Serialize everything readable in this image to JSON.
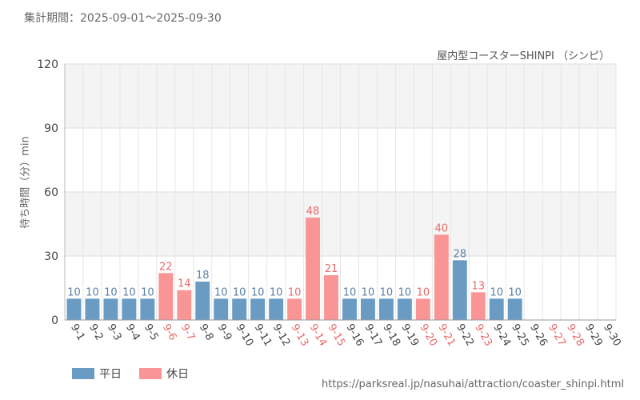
{
  "header": {
    "period": "集計期間：2025-09-01〜2025-09-30"
  },
  "chart_data": {
    "type": "bar",
    "subtitle": "屋内型コースターSHINPI （シンピ）",
    "ylabel": "待ち時間（分）min",
    "ylim": [
      0,
      120
    ],
    "yticks": [
      0,
      30,
      60,
      90,
      120
    ],
    "grid": true,
    "legend_position": "bottom-left",
    "categories": [
      "9-1",
      "9-2",
      "9-3",
      "9-4",
      "9-5",
      "9-6",
      "9-7",
      "9-8",
      "9-9",
      "9-10",
      "9-11",
      "9-12",
      "9-13",
      "9-14",
      "9-15",
      "9-16",
      "9-17",
      "9-18",
      "9-19",
      "9-20",
      "9-21",
      "9-22",
      "9-23",
      "9-24",
      "9-25",
      "9-26",
      "9-27",
      "9-28",
      "9-29",
      "9-30"
    ],
    "values": [
      10,
      10,
      10,
      10,
      10,
      22,
      14,
      18,
      10,
      10,
      10,
      10,
      10,
      48,
      21,
      10,
      10,
      10,
      10,
      10,
      40,
      28,
      13,
      10,
      10,
      null,
      null,
      null,
      null,
      null
    ],
    "day_type": [
      "weekday",
      "weekday",
      "weekday",
      "weekday",
      "weekday",
      "holiday",
      "holiday",
      "weekday",
      "weekday",
      "weekday",
      "weekday",
      "weekday",
      "holiday",
      "holiday",
      "holiday",
      "weekday",
      "weekday",
      "weekday",
      "weekday",
      "holiday",
      "holiday",
      "weekday",
      "holiday",
      "weekday",
      "weekday",
      "weekday",
      "holiday",
      "holiday",
      "weekday",
      "weekday"
    ],
    "legend": [
      {
        "key": "weekday",
        "label": "平日",
        "color": "#6a9bc3"
      },
      {
        "key": "holiday",
        "label": "休日",
        "color": "#f99595"
      }
    ],
    "label_colors": {
      "weekday": "#5b7fa6",
      "holiday": "#e86a6a"
    }
  },
  "footer": {
    "source": "https://parksreal.jp/nasuhai/attraction/coaster_shinpi.html"
  }
}
